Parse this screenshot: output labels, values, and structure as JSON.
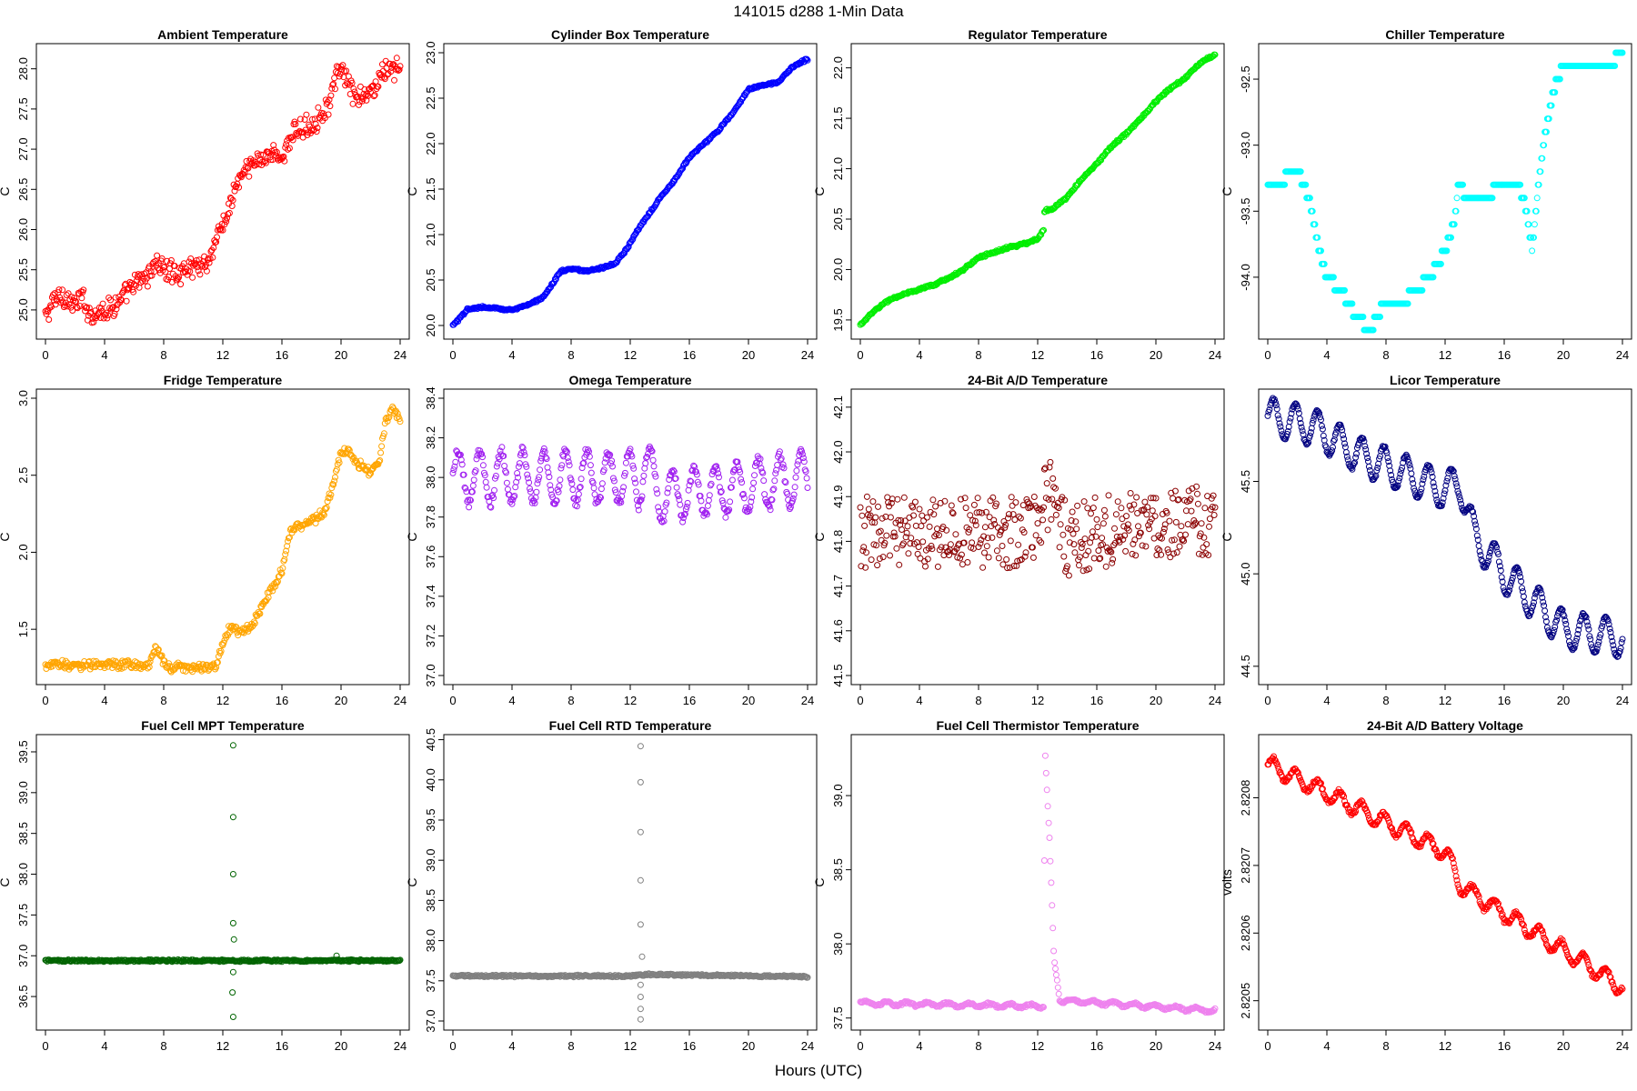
{
  "figure": {
    "title": "141015    d288    1-Min Data",
    "xlabel": "Hours (UTC)"
  },
  "chart_data": [
    {
      "type": "scatter",
      "title": "Ambient Temperature",
      "ylabel": "C",
      "color": "#ff0000",
      "xticks": [
        0,
        4,
        8,
        12,
        16,
        20,
        24
      ],
      "yticks": [
        25.0,
        25.5,
        26.0,
        26.5,
        27.0,
        27.5,
        28.0
      ],
      "xlim": [
        0,
        24
      ],
      "ylim": [
        24.75,
        28.2
      ],
      "spread": 0.12,
      "noise": 0.1,
      "anchors": [
        [
          0,
          24.9
        ],
        [
          0.5,
          25.1
        ],
        [
          1,
          25.2
        ],
        [
          2,
          25.05
        ],
        [
          2.5,
          25.15
        ],
        [
          3,
          24.95
        ],
        [
          4,
          25.0
        ],
        [
          5,
          25.1
        ],
        [
          6,
          25.3
        ],
        [
          7,
          25.45
        ],
        [
          7.5,
          25.6
        ],
        [
          8,
          25.5
        ],
        [
          9,
          25.45
        ],
        [
          10,
          25.55
        ],
        [
          11,
          25.6
        ],
        [
          11.6,
          25.9
        ],
        [
          12,
          26.05
        ],
        [
          12.5,
          26.3
        ],
        [
          13,
          26.6
        ],
        [
          14,
          26.8
        ],
        [
          15,
          26.95
        ],
        [
          16,
          26.9
        ],
        [
          17,
          27.25
        ],
        [
          18,
          27.3
        ],
        [
          19,
          27.5
        ],
        [
          19.7,
          27.9
        ],
        [
          20.2,
          27.95
        ],
        [
          21,
          27.6
        ],
        [
          22,
          27.7
        ],
        [
          23,
          28.0
        ],
        [
          24,
          28.0
        ]
      ]
    },
    {
      "type": "scatter",
      "title": "Cylinder Box Temperature",
      "ylabel": "C",
      "color": "#0000ff",
      "xticks": [
        0,
        4,
        8,
        12,
        16,
        20,
        24
      ],
      "yticks": [
        20.0,
        20.5,
        21.0,
        21.5,
        22.0,
        22.5,
        23.0
      ],
      "xlim": [
        0,
        24
      ],
      "ylim": [
        19.95,
        23.0
      ],
      "spread": 0.02,
      "noise": 0.005,
      "anchors": [
        [
          0,
          20.0
        ],
        [
          0.6,
          20.1
        ],
        [
          1,
          20.18
        ],
        [
          2,
          20.2
        ],
        [
          3,
          20.19
        ],
        [
          4,
          20.17
        ],
        [
          5,
          20.22
        ],
        [
          6,
          20.3
        ],
        [
          6.5,
          20.4
        ],
        [
          7.3,
          20.6
        ],
        [
          8,
          20.62
        ],
        [
          9,
          20.6
        ],
        [
          10,
          20.63
        ],
        [
          11,
          20.68
        ],
        [
          11.8,
          20.85
        ],
        [
          12.5,
          21.05
        ],
        [
          14,
          21.4
        ],
        [
          15,
          21.6
        ],
        [
          16,
          21.85
        ],
        [
          17,
          22.0
        ],
        [
          18,
          22.15
        ],
        [
          19,
          22.35
        ],
        [
          20,
          22.6
        ],
        [
          21,
          22.65
        ],
        [
          22,
          22.67
        ],
        [
          23,
          22.85
        ],
        [
          24,
          22.93
        ]
      ]
    },
    {
      "type": "scatter",
      "title": "Regulator Temperature",
      "ylabel": "C",
      "color": "#00ee00",
      "xticks": [
        0,
        4,
        8,
        12,
        16,
        20,
        24
      ],
      "yticks": [
        19.5,
        20.0,
        20.5,
        21.0,
        21.5,
        22.0
      ],
      "xlim": [
        0,
        24
      ],
      "ylim": [
        19.4,
        22.15
      ],
      "spread": 0.02,
      "noise": 0.005,
      "anchors": [
        [
          0,
          19.45
        ],
        [
          1,
          19.6
        ],
        [
          2,
          19.7
        ],
        [
          3,
          19.76
        ],
        [
          4,
          19.8
        ],
        [
          5,
          19.85
        ],
        [
          6,
          19.92
        ],
        [
          7,
          20.0
        ],
        [
          8,
          20.12
        ],
        [
          9,
          20.17
        ],
        [
          10,
          20.22
        ],
        [
          11,
          20.25
        ],
        [
          12,
          20.3
        ],
        [
          12.4,
          20.4
        ],
        [
          12.45,
          20.58
        ],
        [
          13,
          20.6
        ],
        [
          14,
          20.72
        ],
        [
          15,
          20.9
        ],
        [
          16,
          21.05
        ],
        [
          17,
          21.22
        ],
        [
          18,
          21.35
        ],
        [
          19,
          21.5
        ],
        [
          20,
          21.67
        ],
        [
          21,
          21.8
        ],
        [
          22,
          21.9
        ],
        [
          23,
          22.05
        ],
        [
          24,
          22.13
        ]
      ]
    },
    {
      "type": "scatter",
      "title": "Chiller Temperature",
      "ylabel": "C",
      "color": "#00ffff",
      "xticks": [
        0,
        4,
        8,
        12,
        16,
        20,
        24
      ],
      "yticks": [
        -94.0,
        -93.5,
        -93.0,
        -92.5
      ],
      "xlim": [
        0,
        24
      ],
      "ylim": [
        -94.4,
        -92.3
      ],
      "spread": 0.0,
      "noise": 0.0,
      "step": 0.1,
      "anchors": [
        [
          0,
          -93.3
        ],
        [
          1,
          -93.3
        ],
        [
          1.3,
          -93.2
        ],
        [
          2,
          -93.2
        ],
        [
          2.5,
          -93.3
        ],
        [
          3,
          -93.5
        ],
        [
          3.5,
          -93.8
        ],
        [
          4,
          -94.0
        ],
        [
          5,
          -94.1
        ],
        [
          5.5,
          -94.2
        ],
        [
          6,
          -94.3
        ],
        [
          7,
          -94.4
        ],
        [
          7.3,
          -94.3
        ],
        [
          8,
          -94.2
        ],
        [
          9,
          -94.2
        ],
        [
          10,
          -94.1
        ],
        [
          11,
          -94.0
        ],
        [
          12,
          -93.8
        ],
        [
          12.6,
          -93.6
        ],
        [
          12.9,
          -93.3
        ],
        [
          13.5,
          -93.4
        ],
        [
          15,
          -93.4
        ],
        [
          15.5,
          -93.3
        ],
        [
          17,
          -93.3
        ],
        [
          17.5,
          -93.5
        ],
        [
          17.9,
          -93.8
        ],
        [
          18.3,
          -93.3
        ],
        [
          18.8,
          -92.9
        ],
        [
          19.3,
          -92.6
        ],
        [
          20,
          -92.4
        ],
        [
          22,
          -92.4
        ],
        [
          23,
          -92.4
        ],
        [
          24,
          -92.3
        ]
      ]
    },
    {
      "type": "scatter",
      "title": "Fridge Temperature",
      "ylabel": "C",
      "color": "#ffa500",
      "xticks": [
        0,
        4,
        8,
        12,
        16,
        20,
        24
      ],
      "yticks": [
        1.5,
        2.0,
        2.5,
        3.0
      ],
      "xlim": [
        0,
        24
      ],
      "ylim": [
        1.2,
        3.0
      ],
      "spread": 0.03,
      "noise": 0.02,
      "anchors": [
        [
          0,
          1.27
        ],
        [
          7,
          1.27
        ],
        [
          7.5,
          1.38
        ],
        [
          8.2,
          1.25
        ],
        [
          11.5,
          1.26
        ],
        [
          12,
          1.4
        ],
        [
          12.5,
          1.52
        ],
        [
          13,
          1.48
        ],
        [
          14,
          1.52
        ],
        [
          15,
          1.72
        ],
        [
          16,
          1.88
        ],
        [
          16.6,
          2.15
        ],
        [
          17,
          2.16
        ],
        [
          18,
          2.2
        ],
        [
          19,
          2.28
        ],
        [
          20,
          2.65
        ],
        [
          20.5,
          2.65
        ],
        [
          21,
          2.58
        ],
        [
          22,
          2.52
        ],
        [
          22.6,
          2.6
        ],
        [
          23,
          2.85
        ],
        [
          23.5,
          2.93
        ],
        [
          24,
          2.85
        ]
      ]
    },
    {
      "type": "scatter",
      "title": "Omega Temperature",
      "ylabel": "C",
      "color": "#a020f0",
      "xticks": [
        0,
        4,
        8,
        12,
        16,
        20,
        24
      ],
      "yticks": [
        37.0,
        37.2,
        37.4,
        37.6,
        37.8,
        38.0,
        38.2,
        38.4
      ],
      "xlim": [
        0,
        24
      ],
      "ylim": [
        37.0,
        38.4
      ],
      "spread": 0.02,
      "noise": 0.02,
      "osc": [
        0.13,
        1.45
      ],
      "anchors": [
        [
          0,
          38.0
        ],
        [
          12,
          38.0
        ],
        [
          12.5,
          37.95
        ],
        [
          13,
          38.1
        ],
        [
          14,
          37.9
        ],
        [
          24,
          38.0
        ]
      ]
    },
    {
      "type": "scatter",
      "title": "24-Bit A/D Temperature",
      "ylabel": "C",
      "color": "#8b0000",
      "xticks": [
        0,
        4,
        8,
        12,
        16,
        20,
        24
      ],
      "yticks": [
        41.5,
        41.6,
        41.7,
        41.8,
        41.9,
        42.0,
        42.1
      ],
      "xlim": [
        0,
        24
      ],
      "ylim": [
        41.5,
        42.12
      ],
      "spread": 0.0,
      "noise": 0.08,
      "anchors": [
        [
          0,
          41.82
        ],
        [
          12,
          41.82
        ],
        [
          12.5,
          41.9
        ],
        [
          13,
          41.9
        ],
        [
          14,
          41.8
        ],
        [
          16,
          41.82
        ],
        [
          24,
          41.85
        ]
      ]
    },
    {
      "type": "scatter",
      "title": "Licor Temperature",
      "ylabel": "C",
      "color": "#000080",
      "xticks": [
        0,
        4,
        8,
        12,
        16,
        20,
        24
      ],
      "yticks": [
        44.5,
        45.0,
        45.5
      ],
      "xlim": [
        0,
        24
      ],
      "ylim": [
        44.45,
        45.95
      ],
      "spread": 0.01,
      "noise": 0.005,
      "osc": [
        0.1,
        1.5
      ],
      "anchors": [
        [
          0,
          45.85
        ],
        [
          3,
          45.8
        ],
        [
          6,
          45.65
        ],
        [
          9,
          45.55
        ],
        [
          12,
          45.45
        ],
        [
          13,
          45.5
        ],
        [
          14,
          45.2
        ],
        [
          16,
          45.0
        ],
        [
          18,
          44.85
        ],
        [
          20,
          44.7
        ],
        [
          24,
          44.65
        ]
      ]
    },
    {
      "type": "scatter",
      "title": "Fuel Cell MPT Temperature",
      "ylabel": "C",
      "color": "#006400",
      "xticks": [
        0,
        4,
        8,
        12,
        16,
        20,
        24
      ],
      "yticks": [
        36.5,
        37.0,
        37.5,
        38.0,
        38.5,
        39.0,
        39.5
      ],
      "xlim": [
        0,
        24
      ],
      "ylim": [
        36.2,
        39.6
      ],
      "spread": 0.01,
      "noise": 0.01,
      "anchors": [
        [
          0,
          36.94
        ],
        [
          24,
          36.94
        ]
      ],
      "outliers": [
        [
          12.7,
          39.58
        ],
        [
          12.7,
          38.7
        ],
        [
          12.7,
          38.0
        ],
        [
          12.7,
          37.4
        ],
        [
          12.75,
          37.2
        ],
        [
          12.7,
          36.8
        ],
        [
          12.65,
          36.55
        ],
        [
          12.7,
          36.25
        ],
        [
          19.7,
          37.0
        ]
      ]
    },
    {
      "type": "scatter",
      "title": "Fuel Cell RTD Temperature",
      "ylabel": "C",
      "color": "#808080",
      "xticks": [
        0,
        4,
        8,
        12,
        16,
        20,
        24
      ],
      "yticks": [
        37.0,
        37.5,
        38.0,
        38.5,
        39.0,
        39.5,
        40.0,
        40.5
      ],
      "xlim": [
        0,
        24
      ],
      "ylim": [
        37.0,
        40.45
      ],
      "spread": 0.01,
      "noise": 0.01,
      "anchors": [
        [
          0,
          37.56
        ],
        [
          12,
          37.56
        ],
        [
          13,
          37.58
        ],
        [
          24,
          37.55
        ]
      ],
      "outliers": [
        [
          12.7,
          40.42
        ],
        [
          12.7,
          39.97
        ],
        [
          12.7,
          39.35
        ],
        [
          12.7,
          38.75
        ],
        [
          12.7,
          38.2
        ],
        [
          12.8,
          37.8
        ],
        [
          12.7,
          37.45
        ],
        [
          12.7,
          37.3
        ],
        [
          12.7,
          37.15
        ],
        [
          12.7,
          37.02
        ]
      ]
    },
    {
      "type": "scatter",
      "title": "Fuel Cell Thermistor Temperature",
      "ylabel": "C",
      "color": "#ee82ee",
      "xticks": [
        0,
        4,
        8,
        12,
        16,
        20,
        24
      ],
      "yticks": [
        37.5,
        38.0,
        38.5,
        39.0
      ],
      "xlim": [
        0,
        24
      ],
      "ylim": [
        37.48,
        39.35
      ],
      "spread": 0.01,
      "noise": 0.005,
      "osc": [
        0.012,
        1.4
      ],
      "anchors": [
        [
          0,
          37.6
        ],
        [
          12.4,
          37.58
        ],
        [
          12.5,
          39.3
        ],
        [
          12.8,
          38.7
        ],
        [
          13.1,
          37.9
        ],
        [
          13.5,
          37.62
        ],
        [
          24,
          37.55
        ]
      ]
    },
    {
      "type": "scatter",
      "title": "24-Bit A/D Battery Voltage",
      "ylabel": "volts",
      "color": "#ff0000",
      "xticks": [
        0,
        4,
        8,
        12,
        16,
        20,
        24
      ],
      "yticks": [
        2.8205,
        2.8206,
        2.8207,
        2.8208
      ],
      "xlim": [
        0,
        24
      ],
      "ylim": [
        2.82047,
        2.82088
      ],
      "spread": 4e-06,
      "noise": 2e-06,
      "osc": [
        1.2e-05,
        1.5
      ],
      "anchors": [
        [
          0,
          2.82085
        ],
        [
          12,
          2.82072
        ],
        [
          12.5,
          2.8207
        ],
        [
          13,
          2.82067
        ],
        [
          24,
          2.82052
        ]
      ]
    }
  ]
}
